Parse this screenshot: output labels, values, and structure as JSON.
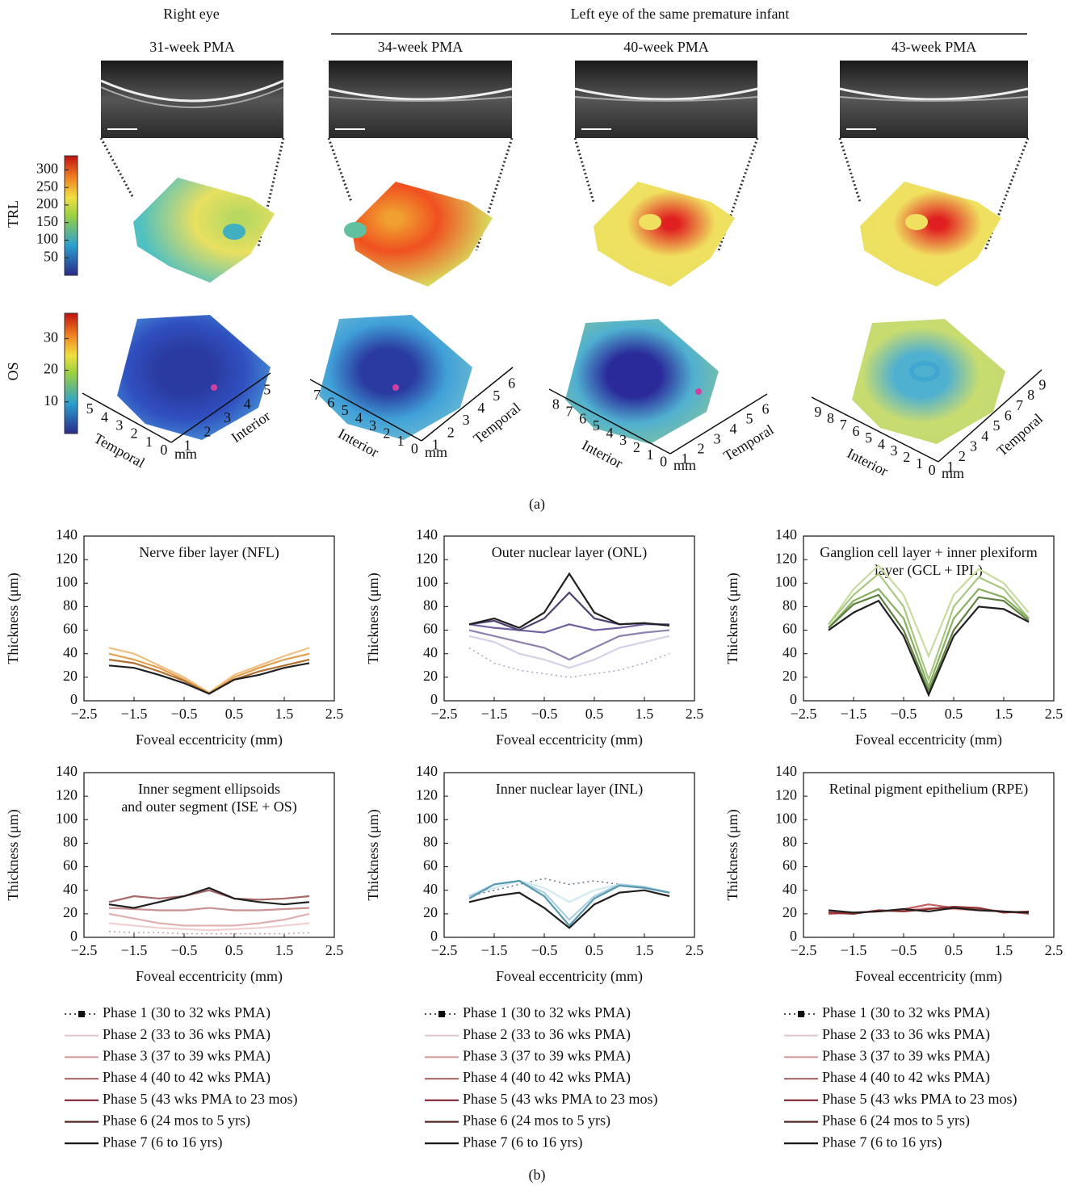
{
  "panel_a": {
    "headers": [
      "Right eye",
      "Left eye of the same premature infant"
    ],
    "row_labels": [
      "TRL",
      "OS"
    ],
    "trl_colorbar": {
      "range": [
        0,
        340
      ],
      "ticks": [
        50,
        100,
        150,
        200,
        250,
        300
      ]
    },
    "os_colorbar": {
      "range": [
        0,
        38
      ],
      "ticks": [
        10,
        20,
        30
      ]
    },
    "scans": [
      {
        "title": "31-week PMA",
        "left_ticks": [
          5,
          4,
          3,
          2,
          1,
          0
        ],
        "left_label": "Temporal",
        "right_ticks": [
          1,
          2,
          3,
          4,
          5
        ],
        "right_label": "Interior",
        "unit": "mm"
      },
      {
        "title": "34-week PMA",
        "left_ticks": [
          7,
          6,
          5,
          4,
          3,
          2,
          1,
          0
        ],
        "left_label": "Interior",
        "right_ticks": [
          1,
          2,
          3,
          4,
          5,
          6
        ],
        "right_label": "Temporal",
        "unit": "mm"
      },
      {
        "title": "40-week PMA",
        "left_ticks": [
          8,
          7,
          6,
          5,
          4,
          3,
          2,
          1,
          0
        ],
        "left_label": "Interior",
        "right_ticks": [
          1,
          2,
          3,
          4,
          5,
          6
        ],
        "right_label": "Temporal",
        "unit": "mm"
      },
      {
        "title": "43-week PMA",
        "left_ticks": [
          9,
          8,
          7,
          6,
          5,
          4,
          3,
          2,
          1,
          0
        ],
        "left_label": "Interior",
        "right_ticks": [
          1,
          2,
          3,
          4,
          5,
          6,
          7,
          8,
          9
        ],
        "right_label": "Temporal",
        "unit": "mm"
      }
    ],
    "label": "(a)"
  },
  "chart_data": [
    {
      "type": "line",
      "title": [
        "Nerve fiber layer (NFL)"
      ],
      "x_label": "Foveal eccentricity (mm)",
      "y_label": "Thickness (μm)",
      "xlim": [
        -2.5,
        2.5
      ],
      "ylim": [
        0,
        140
      ],
      "xticks": [
        {
          "value": -2.5,
          "label": "−2.5"
        },
        {
          "value": -1.5,
          "label": "−1.5"
        },
        {
          "value": -0.5,
          "label": "−0.5"
        },
        0.5,
        1.5,
        2.5
      ],
      "yticks": [
        0,
        20,
        40,
        60,
        80,
        100,
        120,
        140
      ],
      "x": [
        -2,
        -1.5,
        -1,
        -0.5,
        0,
        0.5,
        1,
        1.5,
        2
      ],
      "series": [
        {
          "color": "#f0c080",
          "values": [
            45,
            40,
            30,
            20,
            7,
            22,
            30,
            38,
            45
          ]
        },
        {
          "color": "#e0a050",
          "values": [
            40,
            35,
            28,
            18,
            6,
            20,
            28,
            35,
            40
          ]
        },
        {
          "color": "#b07030",
          "values": [
            35,
            32,
            25,
            17,
            6,
            18,
            25,
            30,
            35
          ]
        },
        {
          "color": "#202020",
          "values": [
            30,
            28,
            22,
            15,
            6,
            18,
            22,
            28,
            32
          ]
        }
      ]
    },
    {
      "type": "line",
      "title": [
        "Outer nuclear layer (ONL)"
      ],
      "x_label": "Foveal eccentricity (mm)",
      "y_label": "Thickness (μm)",
      "xlim": [
        -2.5,
        2.5
      ],
      "ylim": [
        0,
        140
      ],
      "xticks": [
        {
          "value": -2.5,
          "label": "−2.5"
        },
        {
          "value": -1.5,
          "label": "−1.5"
        },
        {
          "value": -0.5,
          "label": "−0.5"
        },
        0.5,
        1.5,
        2.5
      ],
      "yticks": [
        0,
        20,
        40,
        60,
        80,
        100,
        120,
        140
      ],
      "x": [
        -2,
        -1.5,
        -1,
        -0.5,
        0,
        0.5,
        1,
        1.5,
        2
      ],
      "series": [
        {
          "color": "#b0a0c8",
          "dotted": true,
          "values": [
            45,
            32,
            26,
            23,
            20,
            23,
            26,
            32,
            40
          ]
        },
        {
          "color": "#d8d0e8",
          "values": [
            55,
            50,
            40,
            35,
            28,
            35,
            45,
            50,
            55
          ]
        },
        {
          "color": "#9080b0",
          "values": [
            60,
            55,
            50,
            45,
            35,
            45,
            55,
            58,
            60
          ]
        },
        {
          "color": "#7060a0",
          "values": [
            65,
            62,
            60,
            58,
            65,
            60,
            62,
            65,
            65
          ]
        },
        {
          "color": "#504070",
          "values": [
            65,
            68,
            60,
            70,
            92,
            70,
            65,
            66,
            64
          ]
        },
        {
          "color": "#202020",
          "values": [
            65,
            70,
            62,
            75,
            108,
            75,
            65,
            66,
            64
          ]
        }
      ]
    },
    {
      "type": "line",
      "title": [
        "Ganglion cell layer + inner plexiform",
        "layer (GCL + IPL)"
      ],
      "x_label": "Foveal eccentricity (mm)",
      "y_label": "Thickness (μm)",
      "xlim": [
        -2.5,
        2.5
      ],
      "ylim": [
        0,
        140
      ],
      "xticks": [
        {
          "value": -2.5,
          "label": "−2.5"
        },
        {
          "value": -1.5,
          "label": "−1.5"
        },
        {
          "value": -0.5,
          "label": "−0.5"
        },
        0.5,
        1.5,
        2.5
      ],
      "yticks": [
        0,
        20,
        40,
        60,
        80,
        100,
        120,
        140
      ],
      "x": [
        -2,
        -1.5,
        -1,
        -0.5,
        0,
        0.5,
        1,
        1.5,
        2
      ],
      "series": [
        {
          "color": "#c8dca0",
          "values": [
            65,
            95,
            115,
            90,
            38,
            90,
            112,
            100,
            75
          ]
        },
        {
          "color": "#a8c880",
          "values": [
            65,
            90,
            108,
            80,
            18,
            80,
            105,
            95,
            70
          ]
        },
        {
          "color": "#88b060",
          "values": [
            62,
            85,
            95,
            70,
            12,
            70,
            95,
            88,
            70
          ]
        },
        {
          "color": "#608040",
          "values": [
            62,
            82,
            90,
            60,
            8,
            60,
            88,
            85,
            68
          ]
        },
        {
          "color": "#202020",
          "values": [
            60,
            75,
            85,
            55,
            5,
            55,
            80,
            78,
            67
          ]
        }
      ]
    },
    {
      "type": "line",
      "title": [
        "Inner segment ellipsoids",
        "and outer segment (ISE + OS)"
      ],
      "x_label": "Foveal eccentricity (mm)",
      "y_label": "Thickness (μm)",
      "xlim": [
        -2.5,
        2.5
      ],
      "ylim": [
        0,
        140
      ],
      "xticks": [
        {
          "value": -2.5,
          "label": "−2.5"
        },
        {
          "value": -1.5,
          "label": "−1.5"
        },
        {
          "value": -0.5,
          "label": "−0.5"
        },
        0.5,
        1.5,
        2.5
      ],
      "yticks": [
        0,
        20,
        40,
        60,
        80,
        100,
        120,
        140
      ],
      "x": [
        -2,
        -1.5,
        -1,
        -0.5,
        0,
        0.5,
        1,
        1.5,
        2
      ],
      "series": [
        {
          "color": "#c0a0a0",
          "dotted": true,
          "values": [
            5,
            4,
            4,
            3,
            3,
            3,
            3,
            3,
            4
          ]
        },
        {
          "color": "#f0d0d0",
          "values": [
            12,
            10,
            8,
            7,
            6,
            7,
            8,
            10,
            12
          ]
        },
        {
          "color": "#e0b0b0",
          "values": [
            20,
            16,
            12,
            10,
            10,
            10,
            12,
            15,
            20
          ]
        },
        {
          "color": "#c89090",
          "values": [
            25,
            24,
            23,
            23,
            25,
            23,
            23,
            24,
            25
          ]
        },
        {
          "color": "#a86868",
          "values": [
            30,
            35,
            33,
            35,
            40,
            33,
            32,
            33,
            35
          ]
        },
        {
          "color": "#202020",
          "values": [
            28,
            25,
            30,
            35,
            42,
            33,
            30,
            28,
            30
          ]
        }
      ]
    },
    {
      "type": "line",
      "title": [
        "Inner nuclear layer (INL)"
      ],
      "x_label": "Foveal eccentricity (mm)",
      "y_label": "Thickness (μm)",
      "xlim": [
        -2.5,
        2.5
      ],
      "ylim": [
        0,
        140
      ],
      "xticks": [
        {
          "value": -2.5,
          "label": "−2.5"
        },
        {
          "value": -1.5,
          "label": "−1.5"
        },
        {
          "value": -0.5,
          "label": "−0.5"
        },
        0.5,
        1.5,
        2.5
      ],
      "yticks": [
        0,
        20,
        40,
        60,
        80,
        100,
        120,
        140
      ],
      "x": [
        -2,
        -1.5,
        -1,
        -0.5,
        0,
        0.5,
        1,
        1.5,
        2
      ],
      "series": [
        {
          "color": "#607080",
          "dotted": true,
          "values": [
            35,
            40,
            45,
            50,
            45,
            48,
            45,
            42,
            38
          ]
        },
        {
          "color": "#d0e8f0",
          "values": [
            35,
            42,
            48,
            42,
            30,
            40,
            45,
            43,
            38
          ]
        },
        {
          "color": "#a8d0e0",
          "values": [
            35,
            45,
            48,
            38,
            15,
            35,
            45,
            43,
            38
          ]
        },
        {
          "color": "#5898b0",
          "values": [
            33,
            45,
            48,
            35,
            10,
            33,
            44,
            42,
            38
          ]
        },
        {
          "color": "#202020",
          "values": [
            30,
            35,
            38,
            25,
            8,
            28,
            38,
            40,
            35
          ]
        }
      ]
    },
    {
      "type": "line",
      "title": [
        "Retinal pigment epithelium (RPE)"
      ],
      "x_label": "Foveal eccentricity (mm)",
      "y_label": "Thickness (μm)",
      "xlim": [
        -2.5,
        2.5
      ],
      "ylim": [
        0,
        140
      ],
      "xticks": [
        {
          "value": -2.5,
          "label": "−2.5"
        },
        {
          "value": -1.5,
          "label": "−1.5"
        },
        {
          "value": -0.5,
          "label": "−0.5"
        },
        0.5,
        1.5,
        2.5
      ],
      "yticks": [
        0,
        20,
        40,
        60,
        80,
        100,
        120,
        140
      ],
      "x": [
        -2,
        -1.5,
        -1,
        -0.5,
        0,
        0.5,
        1,
        1.5,
        2
      ],
      "series": [
        {
          "color": "#e8a0a0",
          "values": [
            22,
            21,
            22,
            23,
            25,
            24,
            23,
            22,
            21
          ]
        },
        {
          "color": "#c06060",
          "values": [
            20,
            21,
            22,
            24,
            28,
            25,
            24,
            22,
            20
          ]
        },
        {
          "color": "#903030",
          "values": [
            21,
            20,
            23,
            22,
            24,
            26,
            25,
            21,
            22
          ]
        },
        {
          "color": "#202020",
          "values": [
            23,
            21,
            22,
            24,
            22,
            25,
            23,
            22,
            21
          ]
        }
      ]
    }
  ],
  "legend": {
    "entries": [
      {
        "name": "Phase 1 (30 to 32 wks PMA)",
        "color": "#101010",
        "dotted": true
      },
      {
        "name": "Phase 2 (33 to 36 wks PMA)",
        "color": "#e0c8d0"
      },
      {
        "name": "Phase 3 (37 to 39 wks PMA)",
        "color": "#d0a0a0"
      },
      {
        "name": "Phase 4 (40 to 42 wks PMA)",
        "color": "#b07070"
      },
      {
        "name": "Phase 5 (43 wks PMA to 23 mos)",
        "color": "#802030"
      },
      {
        "name": "Phase 6 (24 mos to 5 yrs)",
        "color": "#502020"
      },
      {
        "name": "Phase 7 (6 to 16 yrs)",
        "color": "#101010"
      }
    ]
  },
  "panel_b_label": "(b)"
}
